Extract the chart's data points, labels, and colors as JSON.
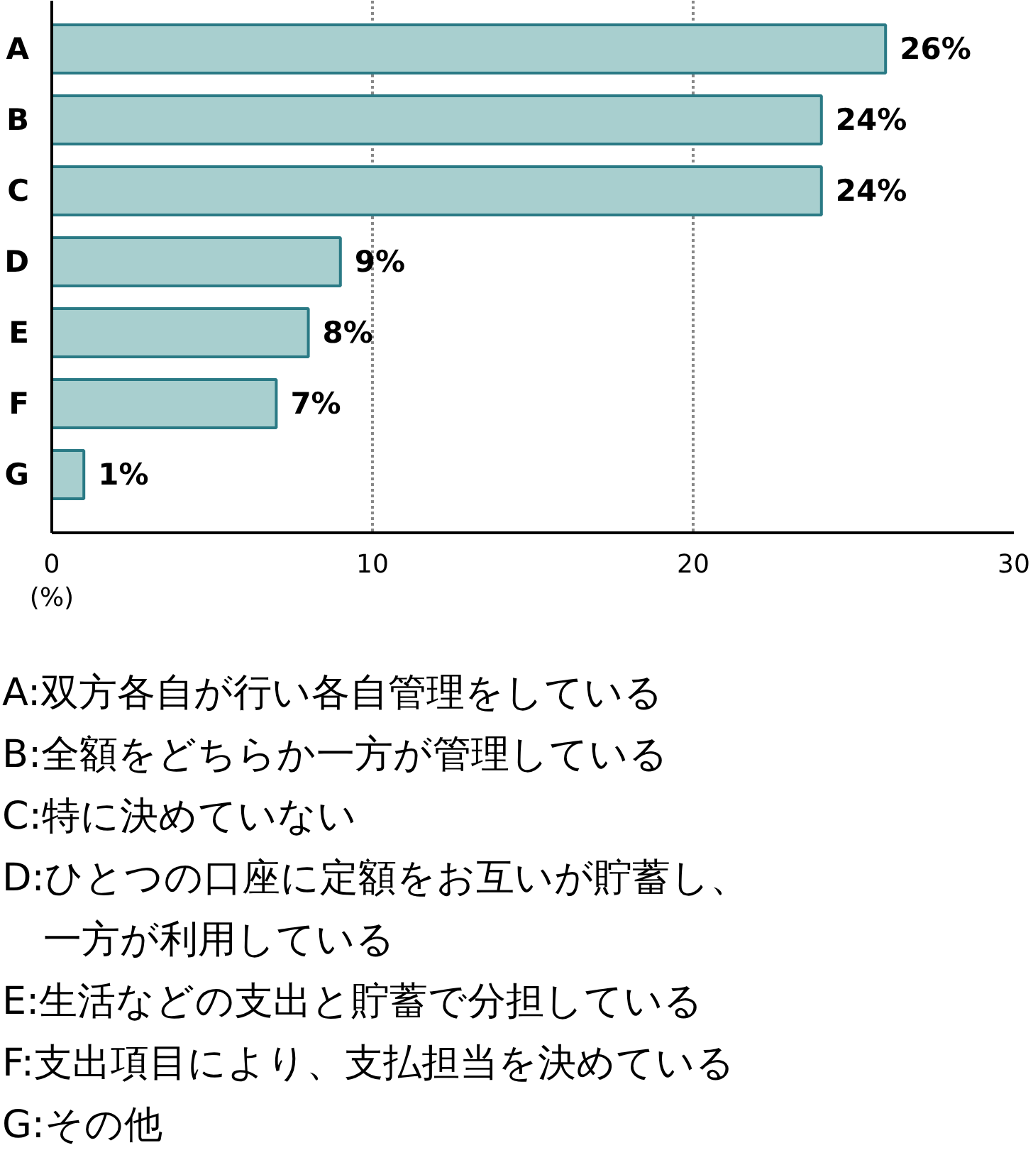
{
  "chart_data": {
    "type": "bar",
    "orientation": "horizontal",
    "categories": [
      "A",
      "B",
      "C",
      "D",
      "E",
      "F",
      "G"
    ],
    "values": [
      26,
      24,
      24,
      9,
      8,
      7,
      1
    ],
    "value_labels": [
      "26%",
      "24%",
      "24%",
      "9%",
      "8%",
      "7%",
      "1%"
    ],
    "color": "#a8cfcf",
    "xlim": [
      0,
      30
    ],
    "xticks": [
      0,
      10,
      20,
      30
    ],
    "xlabel": "(%)",
    "grid": "x",
    "annotations": [
      "A:双方各自が行い各自管理をしている",
      "B:全額をどちらか一方が管理している",
      "C:特に決めていない",
      "D:ひとつの口座に定額をお互いが貯蓄し、一方が利用している",
      "E:生活などの支出と貯蓄で分担している",
      "F:支出項目により、支払担当を決めている",
      "G:その他"
    ]
  }
}
